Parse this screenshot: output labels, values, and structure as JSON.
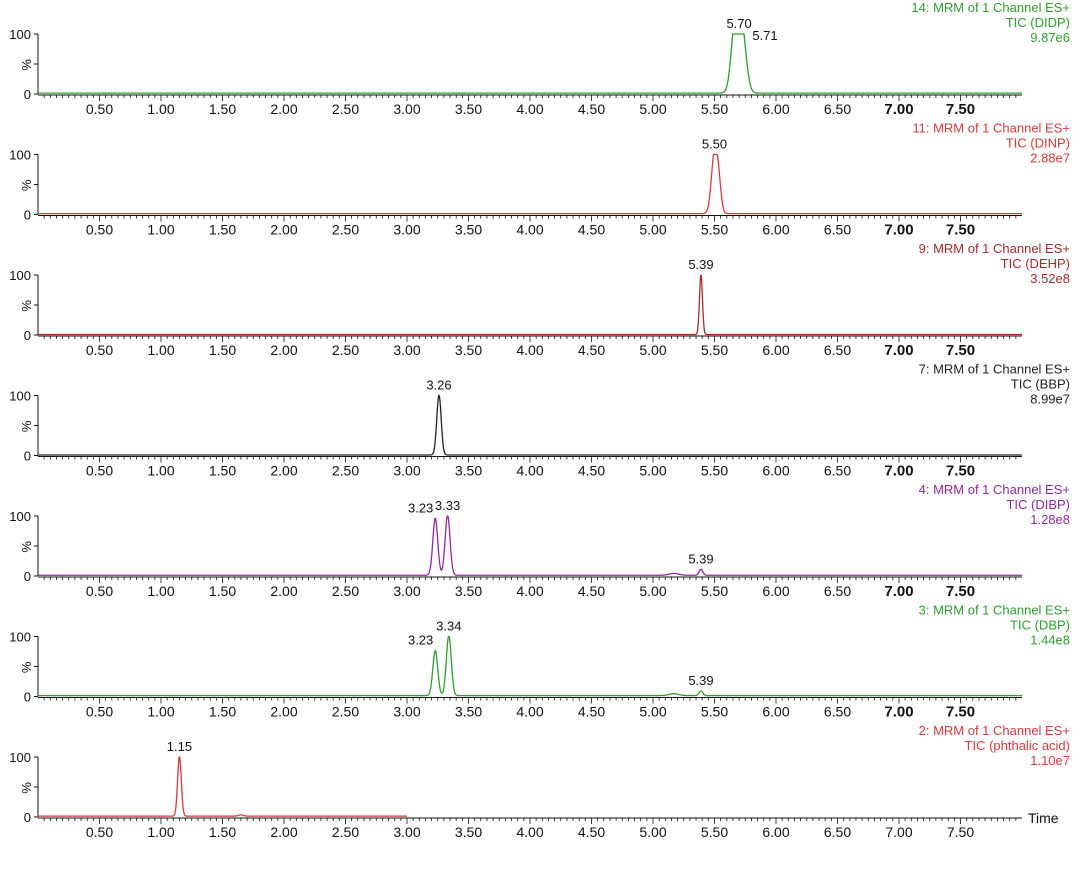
{
  "chart_data": [
    {
      "type": "line",
      "header": [
        "14: MRM of 1 Channel ES+",
        "TIC (DIDP)",
        "9.87e6"
      ],
      "color": "#2e9e2e",
      "y_tick_labels": [
        "100",
        "%",
        "0"
      ],
      "ylim": [
        0,
        100
      ],
      "xlim": [
        0,
        8.0
      ],
      "x_tick_labels": [
        "0.50",
        "1.00",
        "1.50",
        "2.00",
        "2.50",
        "3.00",
        "3.50",
        "4.00",
        "4.50",
        "5.00",
        "5.50",
        "6.00",
        "6.50",
        "7.00",
        "7.50"
      ],
      "x_tick_bold": [
        "7.00",
        "7.50"
      ],
      "trace_end": 8.0,
      "baseline": 1.5,
      "peaks": [
        {
          "rt": 5.7,
          "height": 100,
          "width": 0.03
        },
        {
          "rt": 5.66,
          "height": 82,
          "width": 0.03
        },
        {
          "rt": 5.74,
          "height": 55,
          "width": 0.03
        }
      ],
      "peak_labels": [
        {
          "rt": 5.7,
          "label": "5.70"
        },
        {
          "rt": 5.71,
          "label": "5.71"
        }
      ],
      "show_time_label": false,
      "time_label": ""
    },
    {
      "type": "line",
      "header": [
        "11: MRM of 1 Channel ES+",
        "TIC (DINP)",
        "2.88e7"
      ],
      "color": "#d63a3a",
      "y_tick_labels": [
        "100",
        "%",
        "0"
      ],
      "ylim": [
        0,
        100
      ],
      "xlim": [
        0,
        8.0
      ],
      "x_tick_labels": [
        "0.50",
        "1.00",
        "1.50",
        "2.00",
        "2.50",
        "3.00",
        "3.50",
        "4.00",
        "4.50",
        "5.00",
        "5.50",
        "6.00",
        "6.50",
        "7.00",
        "7.50"
      ],
      "x_tick_bold": [
        "7.00",
        "7.50"
      ],
      "trace_end": 8.0,
      "baseline": 1.5,
      "peaks": [
        {
          "rt": 5.5,
          "height": 100,
          "width": 0.025
        },
        {
          "rt": 5.535,
          "height": 40,
          "width": 0.02
        }
      ],
      "peak_labels": [
        {
          "rt": 5.5,
          "label": "5.50"
        }
      ],
      "show_time_label": false,
      "time_label": ""
    },
    {
      "type": "line",
      "header": [
        "9: MRM of 1 Channel ES+",
        "TIC (DEHP)",
        "3.52e8"
      ],
      "color": "#a52a2a",
      "y_tick_labels": [
        "100",
        "%",
        "0"
      ],
      "ylim": [
        0,
        100
      ],
      "xlim": [
        0,
        8.0
      ],
      "x_tick_labels": [
        "0.50",
        "1.00",
        "1.50",
        "2.00",
        "2.50",
        "3.00",
        "3.50",
        "4.00",
        "4.50",
        "5.00",
        "5.50",
        "6.00",
        "6.50",
        "7.00",
        "7.50"
      ],
      "x_tick_bold": [
        "7.00",
        "7.50"
      ],
      "trace_end": 8.0,
      "baseline": 0.8,
      "peaks": [
        {
          "rt": 5.39,
          "height": 100,
          "width": 0.012
        }
      ],
      "peak_labels": [
        {
          "rt": 5.39,
          "label": "5.39"
        }
      ],
      "show_time_label": false,
      "time_label": ""
    },
    {
      "type": "line",
      "header": [
        "7: MRM of 1 Channel ES+",
        "TIC (BBP)",
        "8.99e7"
      ],
      "color": "#222222",
      "y_tick_labels": [
        "100",
        "%",
        "0"
      ],
      "ylim": [
        0,
        100
      ],
      "xlim": [
        0,
        8.0
      ],
      "x_tick_labels": [
        "0.50",
        "1.00",
        "1.50",
        "2.00",
        "2.50",
        "3.00",
        "3.50",
        "4.00",
        "4.50",
        "5.00",
        "5.50",
        "6.00",
        "6.50",
        "7.00",
        "7.50"
      ],
      "x_tick_bold": [
        "7.00",
        "7.50"
      ],
      "trace_end": 8.0,
      "baseline": 0.8,
      "peaks": [
        {
          "rt": 3.26,
          "height": 100,
          "width": 0.018
        }
      ],
      "peak_labels": [
        {
          "rt": 3.26,
          "label": "3.26"
        }
      ],
      "show_time_label": false,
      "time_label": ""
    },
    {
      "type": "line",
      "header": [
        "4: MRM of 1 Channel ES+",
        "TIC (DIBP)",
        "1.28e8"
      ],
      "color": "#8e2a9e",
      "y_tick_labels": [
        "100",
        "%",
        "0"
      ],
      "ylim": [
        0,
        100
      ],
      "xlim": [
        0,
        8.0
      ],
      "x_tick_labels": [
        "0.50",
        "1.00",
        "1.50",
        "2.00",
        "2.50",
        "3.00",
        "3.50",
        "4.00",
        "4.50",
        "5.00",
        "5.50",
        "6.00",
        "6.50",
        "7.00",
        "7.50"
      ],
      "x_tick_bold": [
        "7.00",
        "7.50"
      ],
      "trace_end": 8.0,
      "baseline": 1.2,
      "peaks": [
        {
          "rt": 3.23,
          "height": 95,
          "width": 0.02
        },
        {
          "rt": 3.33,
          "height": 100,
          "width": 0.02
        },
        {
          "rt": 5.39,
          "height": 10,
          "width": 0.015
        },
        {
          "rt": 5.17,
          "height": 3,
          "width": 0.04
        }
      ],
      "peak_labels": [
        {
          "rt": 3.23,
          "label": "3.23"
        },
        {
          "rt": 3.33,
          "label": "3.33"
        },
        {
          "rt": 5.39,
          "label": "5.39"
        }
      ],
      "show_time_label": false,
      "time_label": ""
    },
    {
      "type": "line",
      "header": [
        "3: MRM of 1 Channel ES+",
        "TIC (DBP)",
        "1.44e8"
      ],
      "color": "#2e9e2e",
      "y_tick_labels": [
        "100",
        "%",
        "0"
      ],
      "ylim": [
        0,
        100
      ],
      "xlim": [
        0,
        8.0
      ],
      "x_tick_labels": [
        "0.50",
        "1.00",
        "1.50",
        "2.00",
        "2.50",
        "3.00",
        "3.50",
        "4.00",
        "4.50",
        "5.00",
        "5.50",
        "6.00",
        "6.50",
        "7.00",
        "7.50"
      ],
      "x_tick_bold": [
        "7.00",
        "7.50"
      ],
      "trace_end": 8.0,
      "baseline": 1.5,
      "peaks": [
        {
          "rt": 3.23,
          "height": 75,
          "width": 0.02
        },
        {
          "rt": 3.34,
          "height": 100,
          "width": 0.02
        },
        {
          "rt": 5.39,
          "height": 8,
          "width": 0.015
        },
        {
          "rt": 5.17,
          "height": 3,
          "width": 0.04
        }
      ],
      "peak_labels": [
        {
          "rt": 3.23,
          "label": "3.23"
        },
        {
          "rt": 3.34,
          "label": "3.34"
        },
        {
          "rt": 5.39,
          "label": "5.39"
        }
      ],
      "show_time_label": false,
      "time_label": ""
    },
    {
      "type": "line",
      "header": [
        "2: MRM of 1 Channel ES+",
        "TIC (phthalic acid)",
        "1.10e7"
      ],
      "color": "#d63a3a",
      "y_tick_labels": [
        "100",
        "%",
        "0"
      ],
      "ylim": [
        0,
        100
      ],
      "xlim": [
        0,
        8.0
      ],
      "x_tick_labels": [
        "0.50",
        "1.00",
        "1.50",
        "2.00",
        "2.50",
        "3.00",
        "3.50",
        "4.00",
        "4.50",
        "5.00",
        "5.50",
        "6.00",
        "6.50",
        "7.00",
        "7.50"
      ],
      "x_tick_bold": [],
      "trace_end": 3.0,
      "baseline": 1.5,
      "peaks": [
        {
          "rt": 1.15,
          "height": 100,
          "width": 0.015
        },
        {
          "rt": 1.65,
          "height": 2,
          "width": 0.02
        }
      ],
      "peak_labels": [
        {
          "rt": 1.15,
          "label": "1.15"
        }
      ],
      "show_time_label": true,
      "time_label": "Time"
    }
  ]
}
